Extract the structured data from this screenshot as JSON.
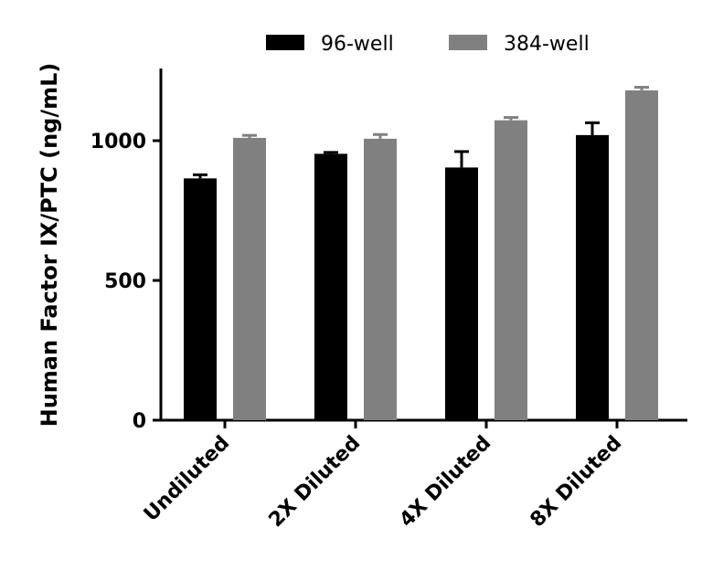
{
  "chart_data": {
    "type": "bar",
    "title": "",
    "xlabel": "",
    "ylabel": "Human Factor IX/PTC (ng/mL)",
    "ylim": [
      0,
      1250
    ],
    "yticks": [
      0,
      500,
      1000
    ],
    "grid": false,
    "legend_position": "top",
    "categories": [
      "Undiluted",
      "2X Diluted",
      "4X Diluted",
      "8X Diluted"
    ],
    "series": [
      {
        "name": "96-well",
        "color": "#000000",
        "values": [
          865,
          953,
          904,
          1020
        ],
        "error_upper": [
          878,
          958,
          961,
          1064
        ]
      },
      {
        "name": "384-well",
        "color": "#808080",
        "values": [
          1010,
          1007,
          1073,
          1180
        ],
        "error_upper": [
          1019,
          1022,
          1083,
          1191
        ]
      }
    ]
  }
}
